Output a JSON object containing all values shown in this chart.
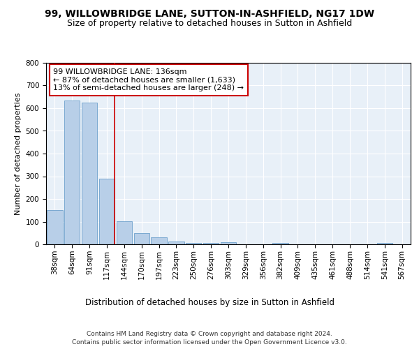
{
  "title1": "99, WILLOWBRIDGE LANE, SUTTON-IN-ASHFIELD, NG17 1DW",
  "title2": "Size of property relative to detached houses in Sutton in Ashfield",
  "xlabel": "Distribution of detached houses by size in Sutton in Ashfield",
  "ylabel": "Number of detached properties",
  "footer": "Contains HM Land Registry data © Crown copyright and database right 2024.\nContains public sector information licensed under the Open Government Licence v3.0.",
  "categories": [
    "38sqm",
    "64sqm",
    "91sqm",
    "117sqm",
    "144sqm",
    "170sqm",
    "197sqm",
    "223sqm",
    "250sqm",
    "276sqm",
    "303sqm",
    "329sqm",
    "356sqm",
    "382sqm",
    "409sqm",
    "435sqm",
    "461sqm",
    "488sqm",
    "514sqm",
    "541sqm",
    "567sqm"
  ],
  "values": [
    150,
    633,
    626,
    290,
    103,
    48,
    31,
    12,
    7,
    5,
    10,
    0,
    0,
    5,
    0,
    0,
    0,
    0,
    0,
    7,
    0
  ],
  "bar_color": "#b8cfe8",
  "bar_edge_color": "#6da0cc",
  "annotation_text": "99 WILLOWBRIDGE LANE: 136sqm\n← 87% of detached houses are smaller (1,633)\n13% of semi-detached houses are larger (248) →",
  "annotation_box_color": "#ffffff",
  "annotation_box_edge_color": "#cc0000",
  "redline_x": 3.43,
  "ylim": [
    0,
    800
  ],
  "yticks": [
    0,
    100,
    200,
    300,
    400,
    500,
    600,
    700,
    800
  ],
  "background_color": "#ffffff",
  "plot_background": "#e8f0f8",
  "grid_color": "#ffffff",
  "title1_fontsize": 10,
  "title2_fontsize": 9,
  "xlabel_fontsize": 8.5,
  "ylabel_fontsize": 8,
  "tick_fontsize": 7.5,
  "annotation_fontsize": 8,
  "footer_fontsize": 6.5
}
